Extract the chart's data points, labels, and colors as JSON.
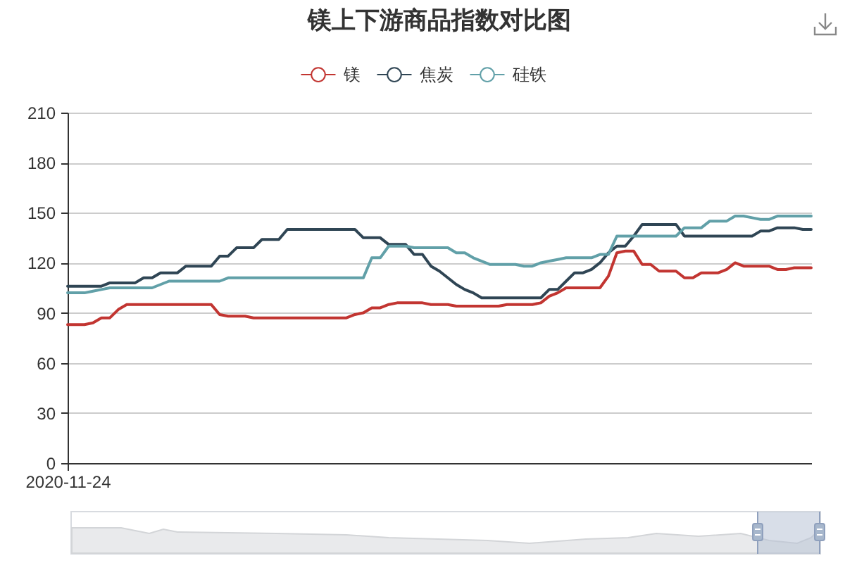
{
  "chart_data": {
    "type": "line",
    "title": "镁上下游商品指数对比图",
    "categories": [
      "2020-11-24",
      null,
      null,
      null,
      null,
      null,
      null,
      null,
      null,
      null,
      null,
      null,
      null,
      null,
      null,
      null,
      null,
      null,
      null,
      null,
      null,
      null,
      null,
      null,
      null,
      null,
      null,
      null,
      null,
      null,
      null,
      null,
      null,
      null,
      null,
      null,
      null,
      null,
      null,
      null,
      null,
      null,
      null,
      null,
      null,
      null,
      null,
      null,
      null,
      null,
      null,
      null,
      null,
      null,
      null,
      null,
      null,
      null,
      null,
      null,
      null,
      null,
      null,
      null,
      null,
      null,
      null,
      null,
      null,
      null,
      null,
      null,
      null,
      null,
      null,
      null,
      null,
      null,
      null,
      null,
      null,
      null,
      null,
      null,
      null,
      null,
      null,
      null,
      null
    ],
    "series": [
      {
        "name": "镁",
        "color": "#c23531",
        "values": [
          83,
          83,
          83,
          84,
          87,
          87,
          92,
          95,
          95,
          95,
          95,
          95,
          95,
          95,
          95,
          95,
          95,
          95,
          89,
          88,
          88,
          88,
          87,
          87,
          87,
          87,
          87,
          87,
          87,
          87,
          87,
          87,
          87,
          87,
          89,
          90,
          93,
          93,
          95,
          96,
          96,
          96,
          96,
          95,
          95,
          95,
          94,
          94,
          94,
          94,
          94,
          94,
          95,
          95,
          95,
          95,
          96,
          100,
          102,
          105,
          105,
          105,
          105,
          105,
          112,
          126,
          127,
          127,
          119,
          119,
          115,
          115,
          115,
          111,
          111,
          114,
          114,
          114,
          116,
          120,
          118,
          118,
          118,
          118,
          116,
          116,
          117,
          117,
          117
        ]
      },
      {
        "name": "焦炭",
        "color": "#2f4554",
        "values": [
          106,
          106,
          106,
          106,
          106,
          108,
          108,
          108,
          108,
          111,
          111,
          114,
          114,
          114,
          118,
          118,
          118,
          118,
          124,
          124,
          129,
          129,
          129,
          134,
          134,
          134,
          140,
          140,
          140,
          140,
          140,
          140,
          140,
          140,
          140,
          135,
          135,
          135,
          131,
          131,
          131,
          125,
          125,
          118,
          115,
          111,
          107,
          104,
          102,
          99,
          99,
          99,
          99,
          99,
          99,
          99,
          99,
          104,
          104,
          109,
          114,
          114,
          116,
          120,
          126,
          130,
          130,
          136,
          143,
          143,
          143,
          143,
          143,
          136,
          136,
          136,
          136,
          136,
          136,
          136,
          136,
          136,
          139,
          139,
          141,
          141,
          141,
          140,
          140
        ]
      },
      {
        "name": "硅铁",
        "color": "#61a0a8",
        "values": [
          102,
          102,
          102,
          103,
          104,
          105,
          105,
          105,
          105,
          105,
          105,
          107,
          109,
          109,
          109,
          109,
          109,
          109,
          109,
          111,
          111,
          111,
          111,
          111,
          111,
          111,
          111,
          111,
          111,
          111,
          111,
          111,
          111,
          111,
          111,
          111,
          123,
          123,
          130,
          130,
          130,
          129,
          129,
          129,
          129,
          129,
          126,
          126,
          123,
          121,
          119,
          119,
          119,
          119,
          118,
          118,
          120,
          121,
          122,
          123,
          123,
          123,
          123,
          125,
          125,
          136,
          136,
          136,
          136,
          136,
          136,
          136,
          136,
          141,
          141,
          141,
          145,
          145,
          145,
          148,
          148,
          147,
          146,
          146,
          148,
          148,
          148,
          148,
          148
        ]
      }
    ],
    "ylim": [
      0,
      210
    ],
    "yticks": [
      0,
      30,
      60,
      90,
      120,
      150,
      180,
      210
    ],
    "grid": "y",
    "legend": "top"
  }
}
